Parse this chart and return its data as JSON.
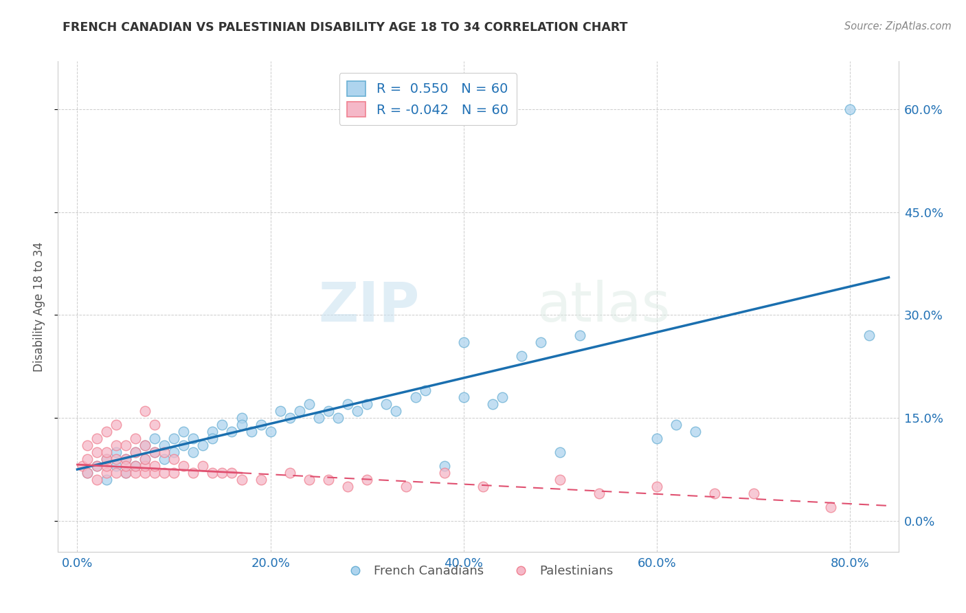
{
  "title": "FRENCH CANADIAN VS PALESTINIAN DISABILITY AGE 18 TO 34 CORRELATION CHART",
  "source": "Source: ZipAtlas.com",
  "xlabel_ticks": [
    "0.0%",
    "20.0%",
    "40.0%",
    "60.0%",
    "80.0%"
  ],
  "ylabel_ticks": [
    "0.0%",
    "15.0%",
    "30.0%",
    "45.0%",
    "60.0%"
  ],
  "xlabel_tick_vals": [
    0.0,
    0.2,
    0.4,
    0.6,
    0.8
  ],
  "ylabel_tick_vals": [
    0.0,
    0.15,
    0.3,
    0.45,
    0.6
  ],
  "ylabel_label": "Disability Age 18 to 34",
  "xlim": [
    -0.02,
    0.85
  ],
  "ylim": [
    -0.045,
    0.67
  ],
  "legend_entry1": "French Canadians",
  "legend_entry2": "Palestinians",
  "blue_color": "#6ab0d4",
  "pink_color": "#f08090",
  "blue_line_color": "#1a6faf",
  "pink_line_color": "#e05070",
  "blue_scatter_facecolor": "#aed4ee",
  "pink_scatter_facecolor": "#f5b8c8",
  "watermark_zip": "ZIP",
  "watermark_atlas": "atlas",
  "blue_R": 0.55,
  "pink_R": -0.042,
  "blue_N": 60,
  "pink_N": 60,
  "blue_x": [
    0.01,
    0.02,
    0.03,
    0.03,
    0.04,
    0.04,
    0.05,
    0.05,
    0.06,
    0.06,
    0.07,
    0.07,
    0.08,
    0.08,
    0.09,
    0.09,
    0.1,
    0.1,
    0.11,
    0.11,
    0.12,
    0.12,
    0.13,
    0.14,
    0.14,
    0.15,
    0.16,
    0.17,
    0.17,
    0.18,
    0.19,
    0.2,
    0.21,
    0.22,
    0.23,
    0.24,
    0.25,
    0.26,
    0.27,
    0.28,
    0.29,
    0.3,
    0.32,
    0.33,
    0.35,
    0.36,
    0.38,
    0.4,
    0.4,
    0.43,
    0.44,
    0.46,
    0.48,
    0.5,
    0.52,
    0.6,
    0.62,
    0.64,
    0.8,
    0.82
  ],
  "blue_y": [
    0.07,
    0.08,
    0.06,
    0.09,
    0.08,
    0.1,
    0.07,
    0.09,
    0.08,
    0.1,
    0.09,
    0.11,
    0.1,
    0.12,
    0.09,
    0.11,
    0.1,
    0.12,
    0.11,
    0.13,
    0.1,
    0.12,
    0.11,
    0.13,
    0.12,
    0.14,
    0.13,
    0.15,
    0.14,
    0.13,
    0.14,
    0.13,
    0.16,
    0.15,
    0.16,
    0.17,
    0.15,
    0.16,
    0.15,
    0.17,
    0.16,
    0.17,
    0.17,
    0.16,
    0.18,
    0.19,
    0.08,
    0.18,
    0.26,
    0.17,
    0.18,
    0.24,
    0.26,
    0.1,
    0.27,
    0.12,
    0.14,
    0.13,
    0.6,
    0.27
  ],
  "pink_x": [
    0.005,
    0.01,
    0.01,
    0.01,
    0.02,
    0.02,
    0.02,
    0.02,
    0.03,
    0.03,
    0.03,
    0.03,
    0.03,
    0.04,
    0.04,
    0.04,
    0.04,
    0.05,
    0.05,
    0.05,
    0.05,
    0.06,
    0.06,
    0.06,
    0.06,
    0.07,
    0.07,
    0.07,
    0.07,
    0.07,
    0.08,
    0.08,
    0.08,
    0.08,
    0.09,
    0.09,
    0.1,
    0.1,
    0.11,
    0.12,
    0.13,
    0.14,
    0.15,
    0.16,
    0.17,
    0.19,
    0.22,
    0.24,
    0.26,
    0.28,
    0.3,
    0.34,
    0.38,
    0.42,
    0.5,
    0.54,
    0.6,
    0.66,
    0.7,
    0.78
  ],
  "pink_y": [
    0.08,
    0.07,
    0.09,
    0.11,
    0.06,
    0.08,
    0.1,
    0.12,
    0.07,
    0.08,
    0.09,
    0.1,
    0.13,
    0.07,
    0.09,
    0.11,
    0.14,
    0.07,
    0.09,
    0.11,
    0.08,
    0.07,
    0.08,
    0.1,
    0.12,
    0.07,
    0.08,
    0.09,
    0.11,
    0.16,
    0.07,
    0.08,
    0.1,
    0.14,
    0.07,
    0.1,
    0.07,
    0.09,
    0.08,
    0.07,
    0.08,
    0.07,
    0.07,
    0.07,
    0.06,
    0.06,
    0.07,
    0.06,
    0.06,
    0.05,
    0.06,
    0.05,
    0.07,
    0.05,
    0.06,
    0.04,
    0.05,
    0.04,
    0.04,
    0.02
  ],
  "blue_line_x0": 0.0,
  "blue_line_x1": 0.84,
  "blue_line_y0": 0.075,
  "blue_line_y1": 0.355,
  "pink_line_x0": 0.0,
  "pink_line_x1": 0.84,
  "pink_line_y0": 0.082,
  "pink_line_y1": 0.022
}
